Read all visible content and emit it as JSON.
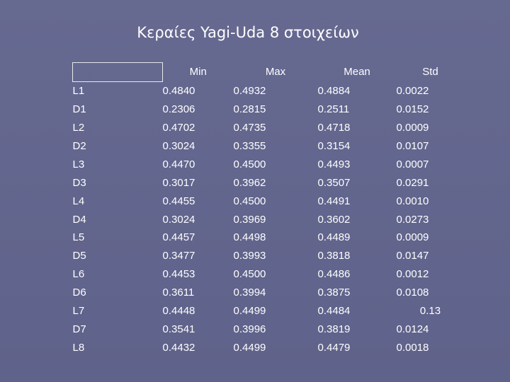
{
  "slide": {
    "title": "Κεραίες Yagi-Uda 8 στοιχείων"
  },
  "table": {
    "headers": [
      "",
      "Min",
      "Max",
      "Mean",
      "Std"
    ],
    "rows": [
      {
        "label": "L1",
        "min": "0.4840",
        "max": "0.4932",
        "mean": "0.4884",
        "std": "0.0022"
      },
      {
        "label": "D1",
        "min": "0.2306",
        "max": "0.2815",
        "mean": "0.2511",
        "std": "0.0152"
      },
      {
        "label": "L2",
        "min": "0.4702",
        "max": "0.4735",
        "mean": "0.4718",
        "std": "0.0009"
      },
      {
        "label": "D2",
        "min": "0.3024",
        "max": "0.3355",
        "mean": "0.3154",
        "std": "0.0107"
      },
      {
        "label": "L3",
        "min": "0.4470",
        "max": "0.4500",
        "mean": "0.4493",
        "std": "0.0007"
      },
      {
        "label": "D3",
        "min": "0.3017",
        "max": "0.3962",
        "mean": "0.3507",
        "std": "0.0291"
      },
      {
        "label": "L4",
        "min": "0.4455",
        "max": "0.4500",
        "mean": "0.4491",
        "std": "0.0010"
      },
      {
        "label": "D4",
        "min": "0.3024",
        "max": "0.3969",
        "mean": "0.3602",
        "std": "0.0273"
      },
      {
        "label": "L5",
        "min": "0.4457",
        "max": "0.4498",
        "mean": "0.4489",
        "std": "0.0009"
      },
      {
        "label": "D5",
        "min": "0.3477",
        "max": "0.3993",
        "mean": "0.3818",
        "std": "0.0147"
      },
      {
        "label": "L6",
        "min": "0.4453",
        "max": "0.4500",
        "mean": "0.4486",
        "std": "0.0012"
      },
      {
        "label": "D6",
        "min": "0.3611",
        "max": "0.3994",
        "mean": "0.3875",
        "std": "0.0108"
      },
      {
        "label": "L7",
        "min": "0.4448",
        "max": "0.4499",
        "mean": "0.4484",
        "std": "0.13"
      },
      {
        "label": "D7",
        "min": "0.3541",
        "max": "0.3996",
        "mean": "0.3819",
        "std": "0.0124"
      },
      {
        "label": "L8",
        "min": "0.4432",
        "max": "0.4499",
        "mean": "0.4479",
        "std": "0.0018"
      }
    ]
  },
  "colors": {
    "background": "#62658c",
    "text": "#ffffff"
  }
}
